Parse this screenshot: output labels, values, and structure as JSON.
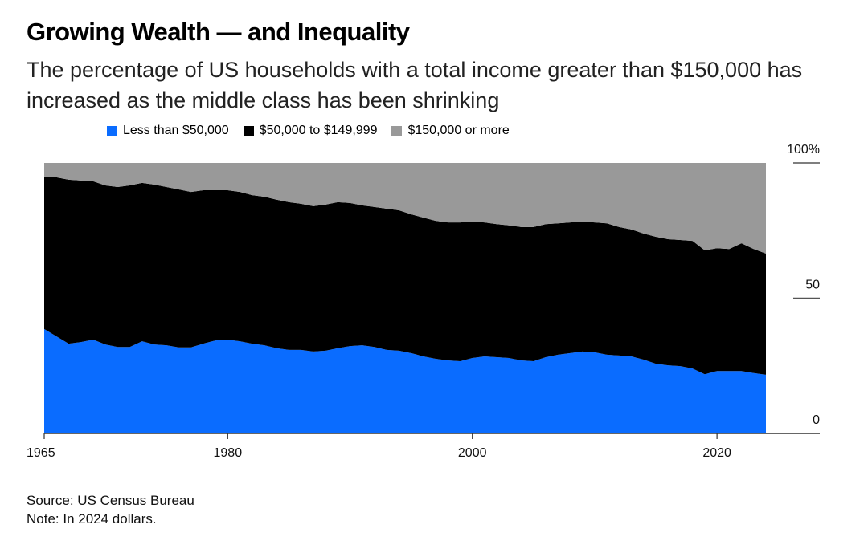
{
  "title": "Growing Wealth — and Inequality",
  "subtitle": "The percentage of US households with a total income greater than $150,000 has increased as the middle class has been shrinking",
  "footer": {
    "source": "Source: US Census Bureau",
    "note": "Note: In 2024 dollars."
  },
  "chart_data": {
    "type": "area",
    "stacked": true,
    "title": "Growing Wealth — and Inequality",
    "xlabel": "",
    "ylabel": "",
    "xlim": [
      1965,
      2024
    ],
    "ylim": [
      0,
      100
    ],
    "x_ticks": [
      "1965",
      "1980",
      "2000",
      "2020"
    ],
    "y_ticks": [
      "0",
      "50",
      "100%"
    ],
    "legend_position": "top",
    "grid": false,
    "x": [
      1965,
      1966,
      1967,
      1968,
      1969,
      1970,
      1971,
      1972,
      1973,
      1974,
      1975,
      1976,
      1977,
      1978,
      1979,
      1980,
      1981,
      1982,
      1983,
      1984,
      1985,
      1986,
      1987,
      1988,
      1989,
      1990,
      1991,
      1992,
      1993,
      1994,
      1995,
      1996,
      1997,
      1998,
      1999,
      2000,
      2001,
      2002,
      2003,
      2004,
      2005,
      2006,
      2007,
      2008,
      2009,
      2010,
      2011,
      2012,
      2013,
      2014,
      2015,
      2016,
      2017,
      2018,
      2019,
      2020,
      2021,
      2022,
      2023,
      2024
    ],
    "series": [
      {
        "name": "Less than $50,000",
        "color": "#0a6cff",
        "values": [
          38.6,
          35.9,
          33.2,
          33.8,
          34.7,
          32.9,
          32.0,
          32.0,
          34.1,
          32.9,
          32.6,
          31.8,
          31.8,
          33.2,
          34.4,
          34.7,
          34.1,
          33.2,
          32.6,
          31.5,
          30.9,
          30.9,
          30.3,
          30.6,
          31.5,
          32.3,
          32.6,
          32.0,
          30.9,
          30.6,
          29.7,
          28.5,
          27.6,
          27.0,
          26.7,
          27.9,
          28.5,
          28.2,
          27.9,
          27.0,
          26.7,
          28.2,
          29.1,
          29.7,
          30.3,
          30.0,
          29.1,
          28.8,
          28.5,
          27.3,
          25.8,
          25.2,
          24.9,
          24.0,
          21.9,
          23.1,
          23.1,
          23.1,
          22.3,
          21.7
        ]
      },
      {
        "name": "$50,000 to $149,999",
        "color": "#000000",
        "values": [
          56.4,
          58.8,
          60.6,
          59.7,
          58.5,
          58.8,
          59.1,
          59.7,
          58.5,
          59.1,
          58.5,
          58.4,
          57.5,
          56.7,
          55.5,
          55.2,
          55.2,
          54.9,
          54.9,
          54.9,
          54.6,
          54.0,
          53.7,
          54.0,
          54.0,
          52.9,
          51.7,
          51.7,
          52.2,
          51.9,
          51.3,
          51.3,
          51.0,
          51.0,
          51.3,
          50.4,
          49.5,
          49.2,
          49.0,
          49.3,
          49.6,
          49.2,
          48.6,
          48.3,
          48.0,
          48.0,
          48.6,
          47.5,
          46.9,
          46.6,
          46.9,
          46.6,
          46.6,
          47.2,
          45.8,
          45.4,
          45.1,
          47.2,
          45.9,
          44.8
        ]
      },
      {
        "name": "$150,000 or more",
        "color": "#999999",
        "values": [
          5.0,
          5.3,
          6.2,
          6.5,
          6.8,
          8.3,
          8.9,
          8.3,
          7.4,
          8.0,
          8.9,
          9.8,
          10.7,
          10.1,
          10.1,
          10.1,
          10.7,
          11.9,
          12.5,
          13.6,
          14.5,
          15.1,
          16.0,
          15.4,
          14.5,
          14.8,
          15.7,
          16.3,
          16.9,
          17.5,
          19.0,
          20.2,
          21.4,
          22.0,
          22.0,
          21.7,
          22.0,
          22.6,
          23.1,
          23.7,
          23.7,
          22.6,
          22.3,
          22.0,
          21.7,
          22.0,
          22.3,
          23.7,
          24.6,
          26.1,
          27.3,
          28.2,
          28.5,
          28.8,
          32.3,
          31.5,
          31.8,
          29.7,
          31.8,
          33.5
        ]
      }
    ]
  }
}
